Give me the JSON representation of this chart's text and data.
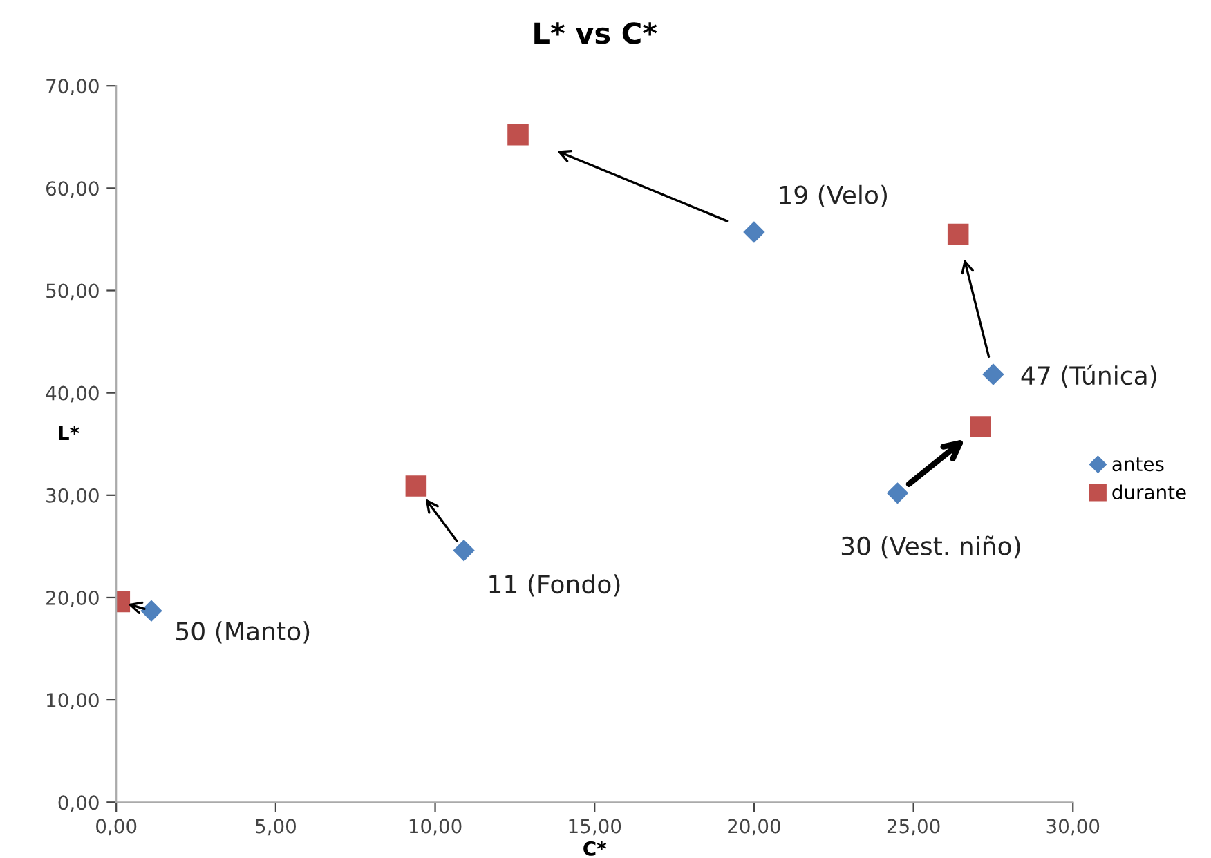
{
  "chart_data": {
    "type": "scatter",
    "title": "L* vs C*",
    "xlabel": "C*",
    "ylabel": "L*",
    "xlim": [
      0,
      30
    ],
    "ylim": [
      0,
      70
    ],
    "xticks": [
      {
        "value": 0,
        "label": "0,00"
      },
      {
        "value": 5,
        "label": "5,00"
      },
      {
        "value": 10,
        "label": "10,00"
      },
      {
        "value": 15,
        "label": "15,00"
      },
      {
        "value": 20,
        "label": "20,00"
      },
      {
        "value": 25,
        "label": "25,00"
      },
      {
        "value": 30,
        "label": "30,00"
      }
    ],
    "yticks": [
      {
        "value": 0,
        "label": "0,00"
      },
      {
        "value": 10,
        "label": "10,00"
      },
      {
        "value": 20,
        "label": "20,00"
      },
      {
        "value": 30,
        "label": "30,00"
      },
      {
        "value": 40,
        "label": "40,00"
      },
      {
        "value": 50,
        "label": "50,00"
      },
      {
        "value": 60,
        "label": "60,00"
      },
      {
        "value": 70,
        "label": "70,00"
      }
    ],
    "grid": false,
    "legend": "right",
    "series": [
      {
        "name": "antes",
        "color": "#4f81bd",
        "marker": "diamond",
        "x": [
          1.1,
          10.9,
          20.0,
          24.5,
          27.5
        ],
        "values": [
          18.7,
          24.6,
          55.7,
          30.2,
          41.8
        ]
      },
      {
        "name": "durante",
        "color": "#c0504d",
        "marker": "square",
        "x": [
          0.1,
          9.4,
          12.6,
          27.1,
          26.4
        ],
        "values": [
          19.6,
          30.9,
          65.2,
          36.7,
          55.5
        ]
      }
    ],
    "annotations": [
      {
        "text": "50 (Manto)",
        "x": 1.1,
        "y": 18.7
      },
      {
        "text": "11 (Fondo)",
        "x": 10.9,
        "y": 24.6
      },
      {
        "text": "19 (Velo)",
        "x": 20.0,
        "y": 55.7
      },
      {
        "text": "30 (Vest. niño)",
        "x": 24.5,
        "y": 30.2
      },
      {
        "text": "47 (Túnica)",
        "x": 27.5,
        "y": 41.8
      }
    ]
  }
}
